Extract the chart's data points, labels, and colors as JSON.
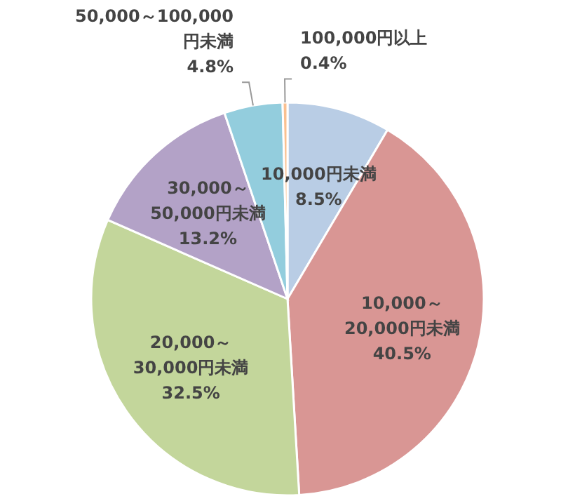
{
  "chart_data": {
    "type": "pie",
    "categories": [
      "10,000円未満",
      "10,000～20,000円未満",
      "20,000～30,000円未満",
      "30,000～50,000円未満",
      "50,000～100,000円未満",
      "100,000円以上"
    ],
    "values": [
      8.5,
      40.5,
      32.5,
      13.2,
      4.8,
      0.4
    ],
    "value_labels": [
      "8.5%",
      "40.5%",
      "32.5%",
      "13.2%",
      "4.8%",
      "0.4%"
    ],
    "colors": [
      "#b9cde5",
      "#d99694",
      "#c3d69b",
      "#b3a2c7",
      "#93cddd",
      "#fac090"
    ]
  }
}
